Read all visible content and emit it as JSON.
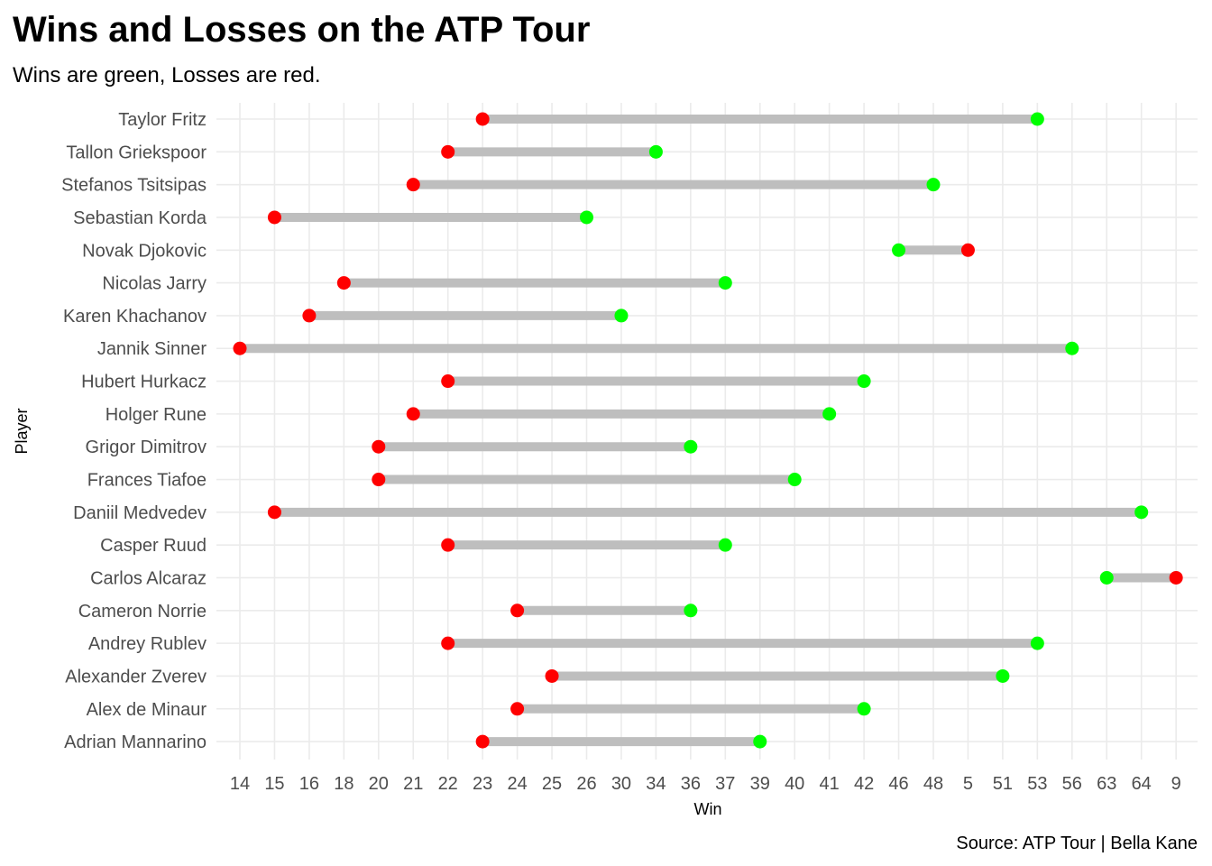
{
  "chart_data": {
    "type": "dumbbell",
    "title": "Wins and Losses on the ATP Tour",
    "subtitle": "Wins are green, Losses are red.",
    "xlabel": "Win",
    "ylabel": "Player",
    "caption": "Source: ATP Tour | Bella Kane",
    "x_ticks": [
      "14",
      "15",
      "16",
      "18",
      "20",
      "21",
      "22",
      "23",
      "24",
      "25",
      "26",
      "30",
      "34",
      "36",
      "37",
      "39",
      "40",
      "41",
      "42",
      "46",
      "48",
      "5",
      "51",
      "53",
      "56",
      "63",
      "64",
      "9"
    ],
    "players": [
      "Taylor Fritz",
      "Tallon Griekspoor",
      "Stefanos Tsitsipas",
      "Sebastian Korda",
      "Novak Djokovic",
      "Nicolas Jarry",
      "Karen Khachanov",
      "Jannik Sinner",
      "Hubert Hurkacz",
      "Holger Rune",
      "Grigor Dimitrov",
      "Frances Tiafoe",
      "Daniil Medvedev",
      "Casper Ruud",
      "Carlos Alcaraz",
      "Cameron Norrie",
      "Andrey Rublev",
      "Alexander Zverev",
      "Alex de Minaur",
      "Adrian Mannarino"
    ],
    "series": [
      {
        "name": "Win",
        "color": "#00ff00",
        "values": [
          "53",
          "34",
          "48",
          "26",
          "46",
          "37",
          "30",
          "56",
          "42",
          "41",
          "36",
          "40",
          "64",
          "37",
          "63",
          "36",
          "53",
          "51",
          "42",
          "39"
        ]
      },
      {
        "name": "Loss",
        "color": "#ff0000",
        "values": [
          "23",
          "22",
          "21",
          "15",
          "5",
          "18",
          "16",
          "14",
          "22",
          "21",
          "20",
          "20",
          "15",
          "22",
          "9",
          "24",
          "22",
          "25",
          "24",
          "23"
        ]
      }
    ],
    "segment_color": "#bebebe",
    "grid": true,
    "legend": "none"
  }
}
